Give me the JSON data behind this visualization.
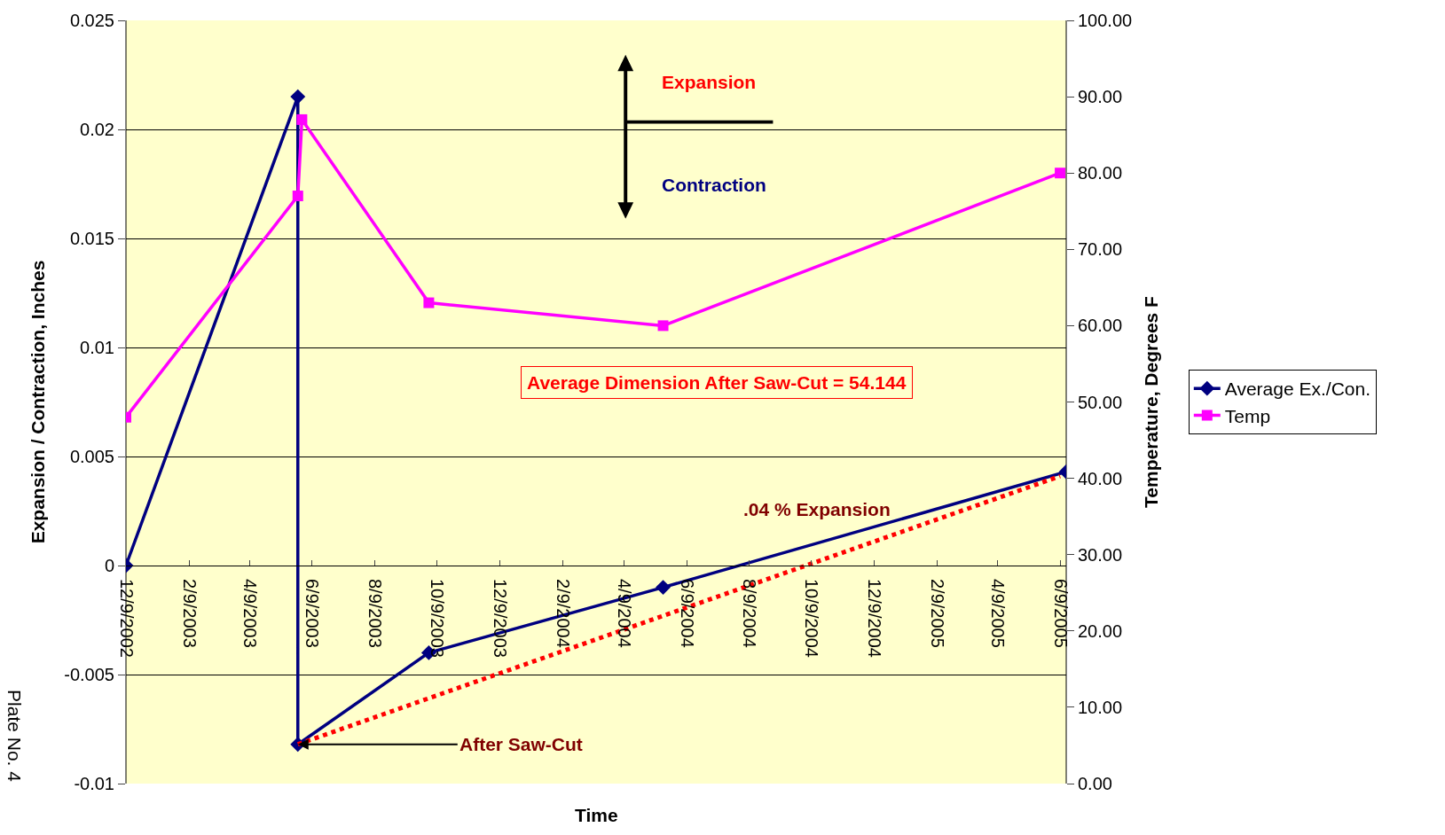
{
  "chart_data": {
    "type": "line",
    "xlabel": "Time",
    "ylabel": "Expansion / Contraction, Inches",
    "y2label": "Temperature, Degrees F",
    "series": [
      {
        "name": "Average Ex./Con.",
        "color": "#000080",
        "marker": "diamond",
        "x": [
          "2002-12-09",
          "2003-05-26",
          "2003-05-26",
          "2003-10-01",
          "2004-05-17",
          "2005-06-15"
        ],
        "values": [
          0,
          0.0215,
          -0.0082,
          -0.004,
          -0.001,
          0.0043
        ]
      },
      {
        "name": "Temp",
        "color": "#ff00ff",
        "marker": "square",
        "axis": "y2",
        "x": [
          "2002-12-09",
          "2003-05-26",
          "2003-05-30",
          "2003-10-01",
          "2004-05-17",
          "2005-06-09"
        ],
        "values": [
          48,
          77,
          87,
          63,
          60,
          80
        ]
      },
      {
        "color": "#ff0000",
        "marker": "none",
        "line_style": "dotted",
        "x": [
          "2003-05-26",
          "2005-06-09"
        ],
        "values": [
          -0.0082,
          0.0041
        ]
      }
    ],
    "xlim": [
      "2002-12-09",
      "2005-06-15"
    ],
    "xticks": [
      {
        "value": "2002-12-09",
        "label": "12/9/2002"
      },
      {
        "value": "2003-02-09",
        "label": "2/9/2003"
      },
      {
        "value": "2003-04-09",
        "label": "4/9/2003"
      },
      {
        "value": "2003-06-09",
        "label": "6/9/2003"
      },
      {
        "value": "2003-08-09",
        "label": "8/9/2003"
      },
      {
        "value": "2003-10-09",
        "label": "10/9/2003"
      },
      {
        "value": "2003-12-09",
        "label": "12/9/2003"
      },
      {
        "value": "2004-02-09",
        "label": "2/9/2004"
      },
      {
        "value": "2004-04-09",
        "label": "4/9/2004"
      },
      {
        "value": "2004-06-09",
        "label": "6/9/2004"
      },
      {
        "value": "2004-08-09",
        "label": "8/9/2004"
      },
      {
        "value": "2004-10-09",
        "label": "10/9/2004"
      },
      {
        "value": "2004-12-09",
        "label": "12/9/2004"
      },
      {
        "value": "2005-02-09",
        "label": "2/9/2005"
      },
      {
        "value": "2005-04-09",
        "label": "4/9/2005"
      },
      {
        "value": "2005-06-09",
        "label": "6/9/2005"
      }
    ],
    "ylim": [
      -0.01,
      0.025
    ],
    "yticks": [
      -0.01,
      -0.005,
      0,
      0.005,
      0.01,
      0.015,
      0.02,
      0.025
    ],
    "y2lim": [
      0,
      100
    ],
    "y2ticks": [
      {
        "value": 0,
        "label": "0.00"
      },
      {
        "value": 10,
        "label": "10.00"
      },
      {
        "value": 20,
        "label": "20.00"
      },
      {
        "value": 30,
        "label": "30.00"
      },
      {
        "value": 40,
        "label": "40.00"
      },
      {
        "value": 50,
        "label": "50.00"
      },
      {
        "value": 60,
        "label": "60.00"
      },
      {
        "value": 70,
        "label": "70.00"
      },
      {
        "value": 80,
        "label": "80.00"
      },
      {
        "value": 90,
        "label": "90.00"
      },
      {
        "value": 100,
        "label": "100.00"
      }
    ],
    "grid": "y",
    "legend": "right",
    "annotations": [
      "Expansion",
      "Contraction",
      "Average Dimension After Saw-Cut = 54.144",
      ".04 % Expansion",
      {
        "text": "After Saw-Cut",
        "x": "2003-05-26",
        "y": -0.0082
      },
      "Plate No. 4"
    ]
  }
}
